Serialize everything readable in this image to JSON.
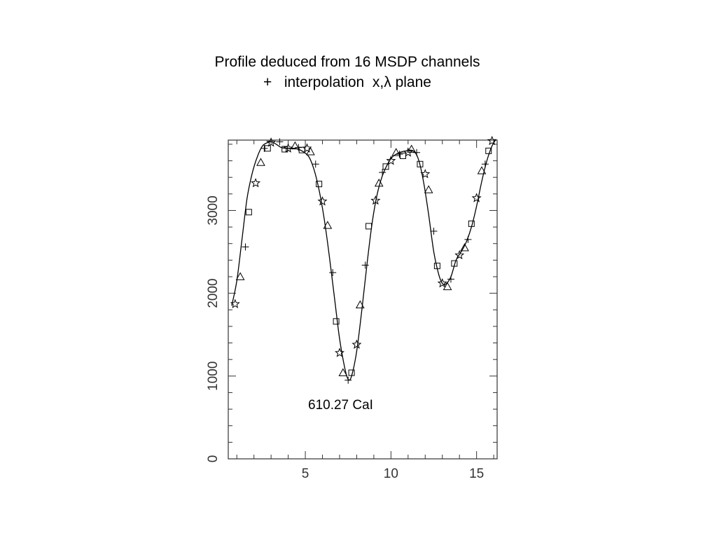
{
  "title": {
    "line1": "Profile deduced from 16 MSDP channels",
    "line2": "+   interpolation  x,λ plane"
  },
  "chart_data": {
    "type": "scatter",
    "title": "Profile deduced from 16 MSDP channels",
    "subtitle": "+   interpolation  x,λ plane",
    "xlabel": "",
    "ylabel": "",
    "xlim": [
      0.5,
      16.2
    ],
    "ylim": [
      0,
      3850
    ],
    "x_ticks": [
      5,
      10,
      15
    ],
    "x_tick_labels": [
      "5",
      "10",
      "15"
    ],
    "y_ticks": [
      0,
      1000,
      2000,
      3000
    ],
    "y_tick_labels": [
      "0",
      "1000",
      "2000",
      "3000"
    ],
    "grid": false,
    "annotation": "610.27 CaI",
    "colors": {
      "ink": "#000000",
      "axis": "#333333"
    },
    "series": [
      {
        "marker": "line",
        "x": [
          0.7,
          1.0,
          1.3,
          1.6,
          1.9,
          2.2,
          2.5,
          2.8,
          3.0,
          3.3,
          3.6,
          4.0,
          4.4,
          4.8,
          5.2,
          5.5,
          5.8,
          6.1,
          6.4,
          6.7,
          7.0,
          7.3,
          7.5,
          7.7,
          8.0,
          8.3,
          8.6,
          8.9,
          9.2,
          9.5,
          9.8,
          10.1,
          10.5,
          10.9,
          11.3,
          11.6,
          11.9,
          12.2,
          12.5,
          12.8,
          13.0,
          13.2,
          13.5,
          13.8,
          14.1,
          14.4,
          14.7,
          15.0,
          15.3,
          15.6,
          15.9,
          16.1
        ],
        "y": [
          1850,
          2150,
          2650,
          3150,
          3450,
          3650,
          3780,
          3820,
          3830,
          3800,
          3760,
          3750,
          3750,
          3720,
          3650,
          3500,
          3250,
          2900,
          2450,
          1950,
          1450,
          1100,
          960,
          1000,
          1300,
          1800,
          2350,
          2850,
          3200,
          3420,
          3560,
          3650,
          3700,
          3720,
          3720,
          3620,
          3350,
          2950,
          2500,
          2220,
          2120,
          2110,
          2200,
          2400,
          2500,
          2620,
          2800,
          3050,
          3350,
          3600,
          3780,
          3850
        ]
      },
      {
        "marker": "star",
        "x": [
          0.9,
          2.1,
          3.0,
          4.0,
          5.1,
          6.0,
          7.0,
          8.0,
          9.1,
          10.0,
          11.0,
          12.0,
          13.0,
          14.0,
          15.0,
          15.9
        ],
        "y": [
          1870,
          3330,
          3820,
          3750,
          3750,
          3110,
          1280,
          1380,
          3120,
          3600,
          3700,
          3440,
          2120,
          2460,
          3150,
          3840
        ]
      },
      {
        "marker": "triangle",
        "x": [
          1.2,
          2.4,
          4.4,
          5.3,
          6.3,
          7.2,
          8.2,
          9.3,
          10.3,
          11.2,
          12.2,
          13.3,
          14.3,
          15.3
        ],
        "y": [
          2200,
          3580,
          3780,
          3710,
          2820,
          1040,
          1860,
          3330,
          3700,
          3740,
          3250,
          2080,
          2550,
          3480
        ]
      },
      {
        "marker": "square",
        "x": [
          1.7,
          2.8,
          3.8,
          4.8,
          5.8,
          6.8,
          7.7,
          8.7,
          9.7,
          10.7,
          11.7,
          12.7,
          13.7,
          14.7,
          15.7
        ],
        "y": [
          2980,
          3750,
          3740,
          3730,
          3320,
          1660,
          1040,
          2810,
          3530,
          3660,
          3560,
          2330,
          2360,
          2840,
          3720
        ]
      },
      {
        "marker": "plus",
        "x": [
          1.5,
          2.6,
          3.5,
          4.6,
          5.6,
          6.6,
          7.5,
          8.5,
          9.5,
          10.5,
          11.5,
          12.5,
          13.5,
          14.5,
          15.5
        ],
        "y": [
          2560,
          3750,
          3830,
          3760,
          3560,
          2250,
          950,
          2340,
          3460,
          3680,
          3700,
          2750,
          2170,
          2650,
          3560
        ]
      }
    ]
  }
}
